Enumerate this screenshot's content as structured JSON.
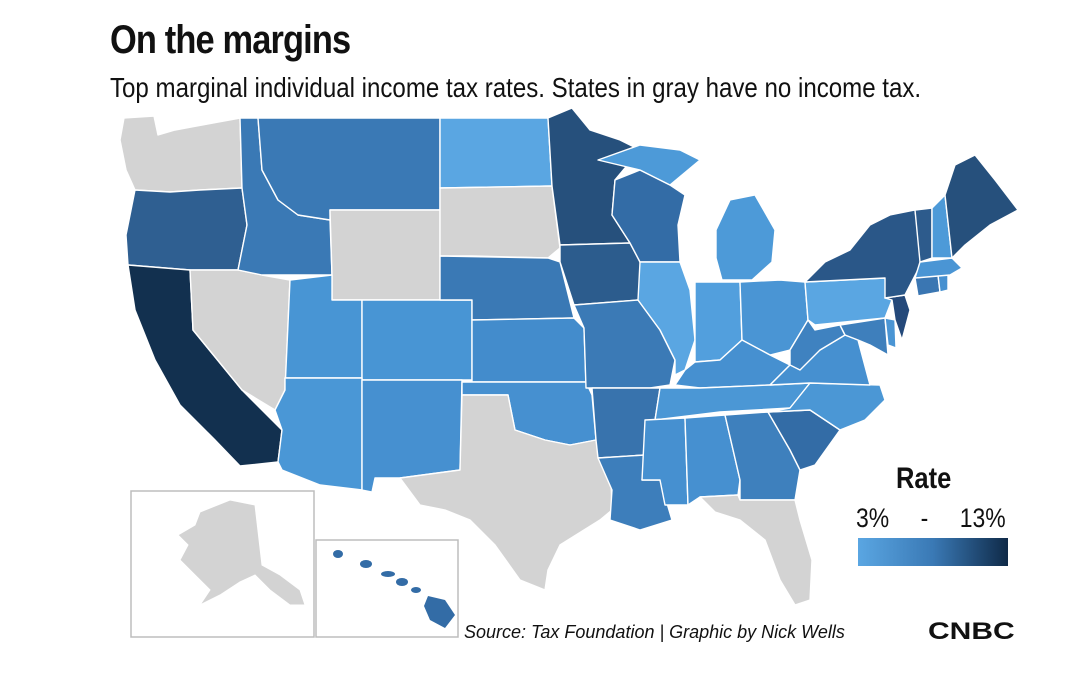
{
  "title": "On the margins",
  "subtitle": "Top marginal individual income tax rates. States in gray have no income tax.",
  "legend": {
    "title": "Rate",
    "min_label": "3%",
    "separator": "-",
    "max_label": "13%",
    "min_color": "#5aa6e2",
    "max_color": "#0f2a48"
  },
  "source": "Source: Tax Foundation | Graphic by Nick Wells",
  "logo": "CNBC",
  "colors": {
    "no_tax": "#d3d3d3",
    "border": "#ffffff",
    "inset_border": "#bdbdbd"
  }
}
